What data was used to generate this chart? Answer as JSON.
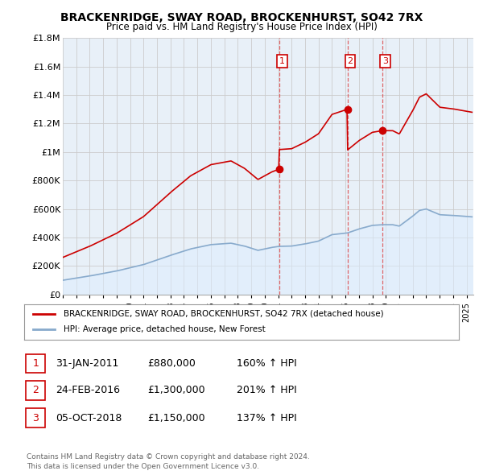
{
  "title": "BRACKENRIDGE, SWAY ROAD, BROCKENHURST, SO42 7RX",
  "subtitle": "Price paid vs. HM Land Registry's House Price Index (HPI)",
  "legend_line1": "BRACKENRIDGE, SWAY ROAD, BROCKENHURST, SO42 7RX (detached house)",
  "legend_line2": "HPI: Average price, detached house, New Forest",
  "footer1": "Contains HM Land Registry data © Crown copyright and database right 2024.",
  "footer2": "This data is licensed under the Open Government Licence v3.0.",
  "transactions": [
    {
      "num": 1,
      "date": "31-JAN-2011",
      "price": "£880,000",
      "hpi": "160% ↑ HPI",
      "year": 2011.08
    },
    {
      "num": 2,
      "date": "24-FEB-2016",
      "price": "£1,300,000",
      "hpi": "201% ↑ HPI",
      "year": 2016.15
    },
    {
      "num": 3,
      "date": "05-OCT-2018",
      "price": "£1,150,000",
      "hpi": "137% ↑ HPI",
      "year": 2018.75
    }
  ],
  "transaction_values": [
    880000,
    1300000,
    1150000
  ],
  "ylim": [
    0,
    1800000
  ],
  "yticks": [
    0,
    200000,
    400000,
    600000,
    800000,
    1000000,
    1200000,
    1400000,
    1600000,
    1800000
  ],
  "ytick_labels": [
    "£0",
    "£200K",
    "£400K",
    "£600K",
    "£800K",
    "£1M",
    "£1.2M",
    "£1.4M",
    "£1.6M",
    "£1.8M"
  ],
  "xmin": 1995.0,
  "xmax": 2025.5,
  "red_color": "#cc0000",
  "blue_color": "#88aacc",
  "blue_fill": "#ddeeff",
  "vline_color": "#dd4444",
  "grid_color": "#cccccc",
  "background_color": "#ffffff",
  "plot_bg": "#e8f0f8",
  "box_color": "#cc0000"
}
